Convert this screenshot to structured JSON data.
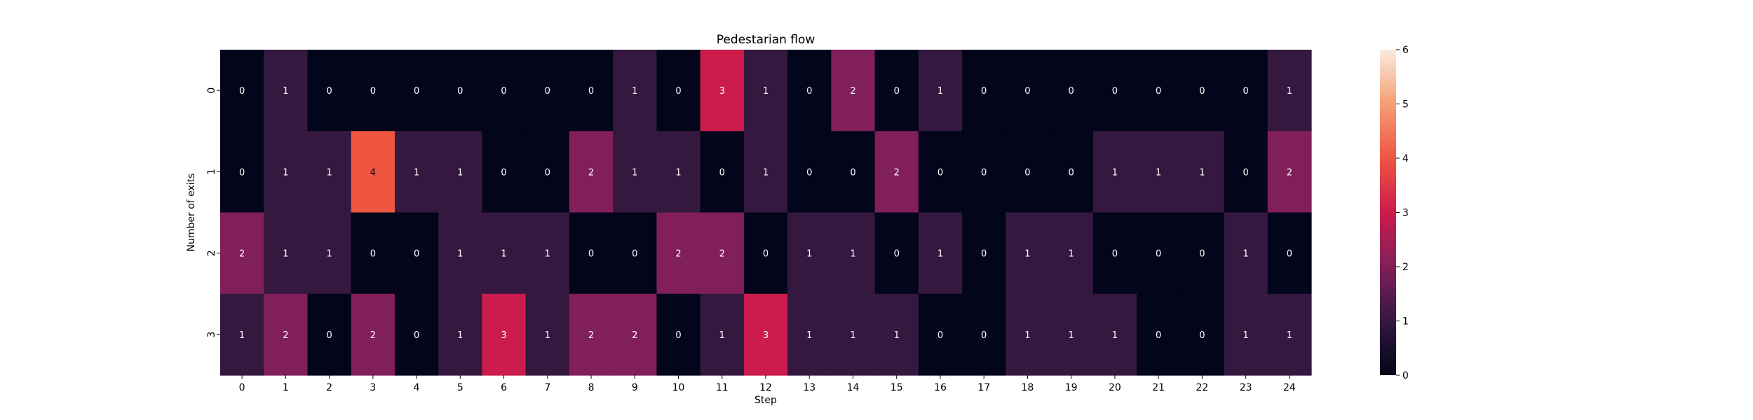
{
  "chart_data": {
    "type": "heatmap",
    "title": "Pedestarian flow",
    "xlabel": "Step",
    "ylabel": "Number of exits",
    "x_categories": [
      "0",
      "1",
      "2",
      "3",
      "4",
      "5",
      "6",
      "7",
      "8",
      "9",
      "10",
      "11",
      "12",
      "13",
      "14",
      "15",
      "16",
      "17",
      "18",
      "19",
      "20",
      "21",
      "22",
      "23",
      "24"
    ],
    "y_categories": [
      "0",
      "1",
      "2",
      "3"
    ],
    "values": [
      [
        0,
        1,
        0,
        0,
        0,
        0,
        0,
        0,
        0,
        1,
        0,
        3,
        1,
        0,
        2,
        0,
        1,
        0,
        0,
        0,
        0,
        0,
        0,
        0,
        1
      ],
      [
        0,
        1,
        1,
        4,
        1,
        1,
        0,
        0,
        2,
        1,
        1,
        0,
        1,
        0,
        0,
        2,
        0,
        0,
        0,
        0,
        1,
        1,
        1,
        0,
        2
      ],
      [
        2,
        1,
        1,
        0,
        0,
        1,
        1,
        1,
        0,
        0,
        2,
        2,
        0,
        1,
        1,
        0,
        1,
        0,
        1,
        1,
        0,
        0,
        0,
        1,
        0
      ],
      [
        1,
        2,
        0,
        2,
        0,
        1,
        3,
        1,
        2,
        2,
        0,
        1,
        3,
        1,
        1,
        1,
        0,
        0,
        1,
        1,
        1,
        0,
        0,
        1,
        1
      ]
    ],
    "colorbar": {
      "min": 0,
      "max": 6,
      "ticks": [
        "0",
        "1",
        "2",
        "3",
        "4",
        "5",
        "6"
      ],
      "colormap": "rocket"
    },
    "annotations": true,
    "grid": false
  }
}
